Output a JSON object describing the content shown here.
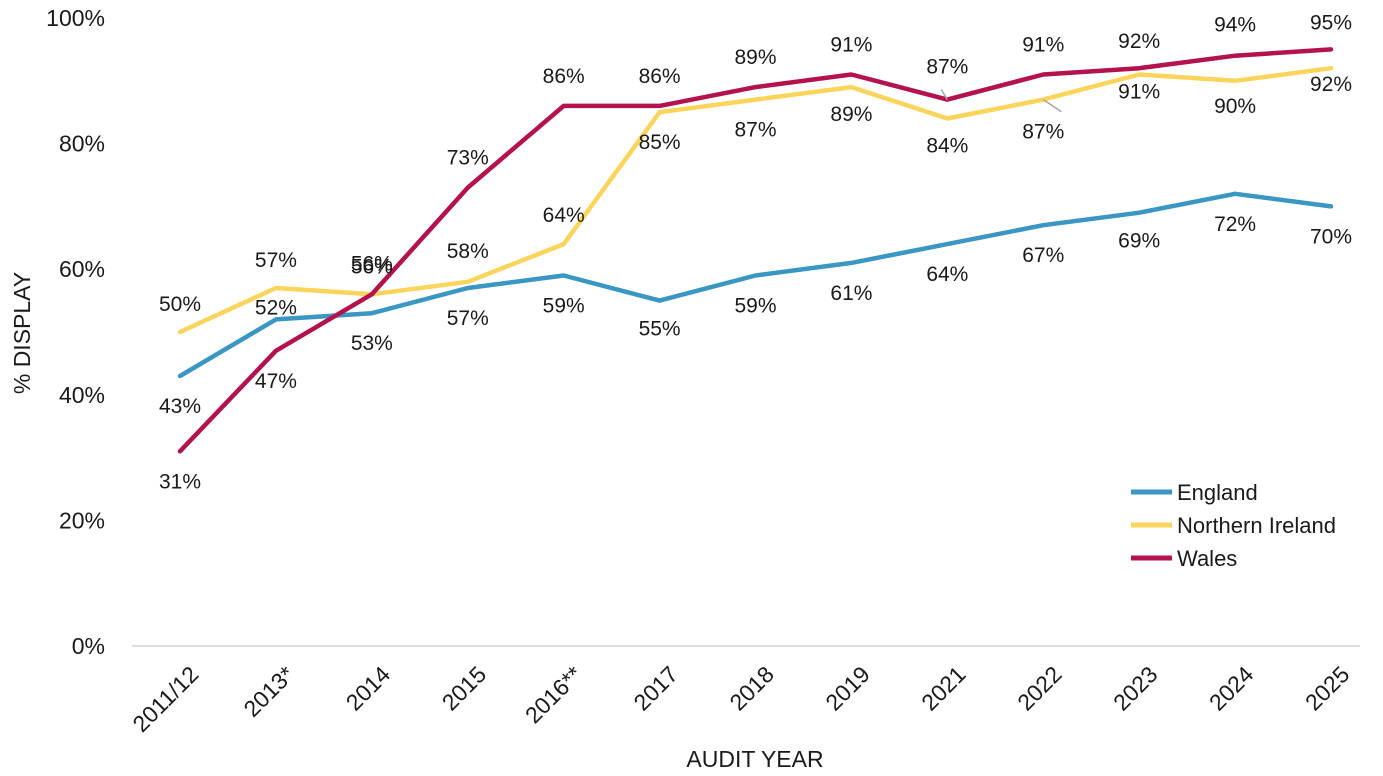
{
  "chart_data": {
    "type": "line",
    "title": "",
    "xlabel": "AUDIT YEAR",
    "ylabel": "% DISPLAY",
    "ylim": [
      0,
      100
    ],
    "yticks": [
      "0%",
      "20%",
      "40%",
      "60%",
      "80%",
      "100%"
    ],
    "grid": false,
    "legend_position": "bottom-right",
    "categories": [
      "2011/12",
      "2013*",
      "2014",
      "2015",
      "2016**",
      "2017",
      "2018",
      "2019",
      "2021",
      "2022",
      "2023",
      "2024",
      "2025"
    ],
    "series": [
      {
        "name": "England",
        "color": "#3a96c3",
        "values": [
          43,
          52,
          53,
          57,
          59,
          55,
          59,
          61,
          64,
          67,
          69,
          72,
          70
        ],
        "labels": [
          "43%",
          "52%",
          "53%",
          "57%",
          "59%",
          "55%",
          "59%",
          "61%",
          "64%",
          "67%",
          "69%",
          "72%",
          "70%"
        ]
      },
      {
        "name": "Northern Ireland",
        "color": "#fbd45c",
        "values": [
          50,
          57,
          56,
          58,
          64,
          85,
          87,
          89,
          84,
          87,
          91,
          90,
          92
        ],
        "labels": [
          "50%",
          "57%",
          "56%",
          "58%",
          "64%",
          "85%",
          "87%",
          "89%",
          "84%",
          "87%",
          "91%",
          "90%",
          "92%"
        ]
      },
      {
        "name": "Wales",
        "color": "#b4124e",
        "values": [
          31,
          47,
          56,
          73,
          86,
          86,
          89,
          91,
          87,
          91,
          92,
          94,
          95
        ],
        "labels": [
          "31%",
          "47%",
          "56%",
          "73%",
          "86%",
          "86%",
          "89%",
          "91%",
          "87%",
          "91%",
          "92%",
          "94%",
          "95%"
        ]
      }
    ]
  }
}
